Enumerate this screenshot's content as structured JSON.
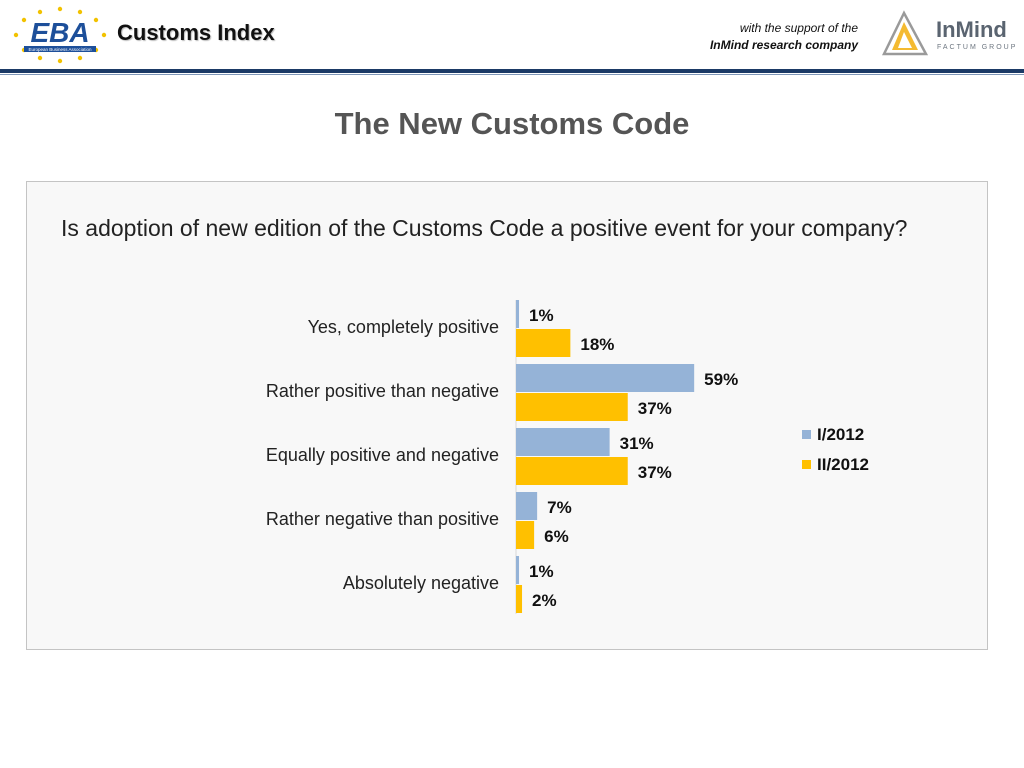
{
  "header": {
    "logo_text": "EBA",
    "logo_subtext": "European Business Association",
    "title": "Customs Index",
    "support_line1": "with the support of the",
    "support_line2": "InMind research company",
    "partner_logo_text": "InMind",
    "partner_logo_subtext": "FACTUM GROUP"
  },
  "page": {
    "title": "The New Customs Code",
    "question": "Is adoption of new edition of the Customs Code a positive event for your company?"
  },
  "colors": {
    "series1": "#95b3d7",
    "series2": "#ffc000",
    "header_rule": "#1b3a66"
  },
  "chart_data": {
    "type": "bar",
    "orientation": "horizontal",
    "categories": [
      "Yes, completely positive",
      "Rather positive than negative",
      "Equally positive and negative",
      "Rather negative than positive",
      "Absolutely negative"
    ],
    "series": [
      {
        "name": "I/2012",
        "values": [
          1,
          59,
          31,
          7,
          1
        ],
        "labels": [
          "1%",
          "59%",
          "31%",
          "7%",
          "1%"
        ]
      },
      {
        "name": "II/2012",
        "values": [
          18,
          37,
          37,
          6,
          2
        ],
        "labels": [
          "18%",
          "37%",
          "37%",
          "6%",
          "2%"
        ]
      }
    ],
    "xlim": [
      0,
      100
    ],
    "grid": false,
    "legend": "right"
  }
}
